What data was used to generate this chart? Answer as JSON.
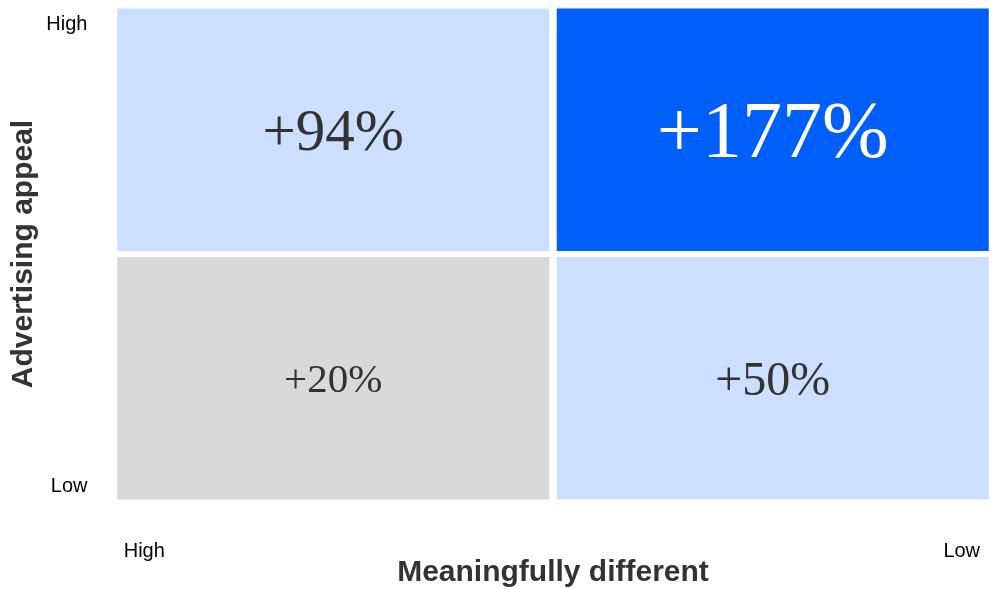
{
  "chart_data": {
    "type": "heatmap",
    "xlabel": "Meaningfully different",
    "ylabel": "Advertising appeal",
    "categories": [
      "High",
      "Low"
    ],
    "y_categories": [
      "High",
      "Low"
    ],
    "cells": [
      [
        94,
        177
      ],
      [
        20,
        50
      ]
    ],
    "cell_labels": [
      [
        "+94%",
        "+177%"
      ],
      [
        "+20%",
        "+50%"
      ]
    ],
    "colors": [
      [
        "#cddfff",
        "#005ff9"
      ],
      [
        "#d9d9d9",
        "#cddfff"
      ]
    ]
  }
}
